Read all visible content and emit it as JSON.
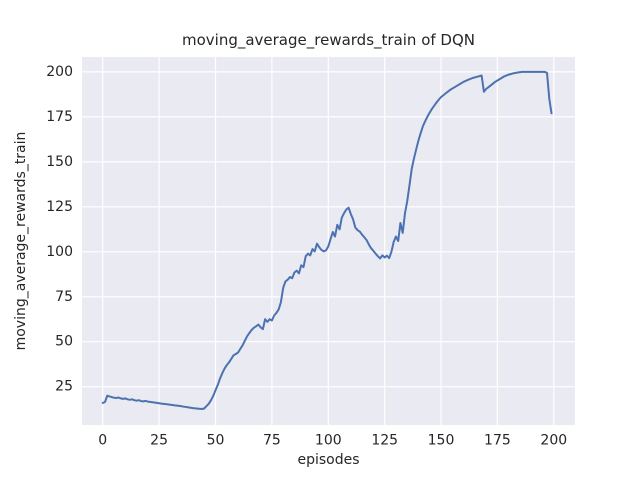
{
  "chart_data": {
    "type": "line",
    "title": "moving_average_rewards_train of DQN",
    "xlabel": "episodes",
    "ylabel": "moving_average_rewards_train",
    "x_ticks": [
      0,
      25,
      50,
      75,
      100,
      125,
      150,
      175,
      200
    ],
    "y_ticks": [
      25,
      50,
      75,
      100,
      125,
      150,
      175,
      200
    ],
    "xlim": [
      -9.2,
      209.4
    ],
    "ylim": [
      3.7,
      208.3
    ],
    "grid": true,
    "legend_position": "none",
    "colors": {
      "figure_bg": "#ffffff",
      "plot_bg": "#eaeaf2",
      "grid": "#ffffff",
      "text": "#262626",
      "line": "#4c72b0"
    },
    "series": [
      {
        "name": "DQN",
        "color": "#4c72b0",
        "points": [
          [
            0,
            16
          ],
          [
            1,
            16.5
          ],
          [
            2,
            20
          ],
          [
            3,
            19.6
          ],
          [
            4,
            19.2
          ],
          [
            5,
            18.9
          ],
          [
            6,
            18.7
          ],
          [
            7,
            19.0
          ],
          [
            8,
            18.5
          ],
          [
            9,
            18.2
          ],
          [
            10,
            18.5
          ],
          [
            11,
            18.0
          ],
          [
            12,
            17.7
          ],
          [
            13,
            18.0
          ],
          [
            14,
            17.5
          ],
          [
            15,
            17.2
          ],
          [
            16,
            17.5
          ],
          [
            17,
            17.0
          ],
          [
            18,
            16.8
          ],
          [
            19,
            17.1
          ],
          [
            20,
            16.7
          ],
          [
            22,
            16.3
          ],
          [
            24,
            16.0
          ],
          [
            26,
            15.6
          ],
          [
            28,
            15.3
          ],
          [
            30,
            15.0
          ],
          [
            32,
            14.6
          ],
          [
            34,
            14.3
          ],
          [
            36,
            13.9
          ],
          [
            38,
            13.5
          ],
          [
            40,
            13.1
          ],
          [
            42,
            12.8
          ],
          [
            44,
            12.6
          ],
          [
            45,
            12.9
          ],
          [
            46,
            14.2
          ],
          [
            47,
            15.5
          ],
          [
            48,
            17.5
          ],
          [
            49,
            20
          ],
          [
            50,
            23
          ],
          [
            51,
            26
          ],
          [
            52,
            29.5
          ],
          [
            53,
            32.5
          ],
          [
            54,
            35
          ],
          [
            55,
            37
          ],
          [
            56,
            38.5
          ],
          [
            57,
            40.5
          ],
          [
            58,
            42.5
          ],
          [
            59,
            43.2
          ],
          [
            60,
            44
          ],
          [
            61,
            46
          ],
          [
            62,
            48
          ],
          [
            63,
            50.5
          ],
          [
            64,
            53
          ],
          [
            65,
            54.8
          ],
          [
            66,
            56.5
          ],
          [
            67,
            57.8
          ],
          [
            68,
            58.6
          ],
          [
            69,
            59.5
          ],
          [
            70,
            58
          ],
          [
            71,
            57
          ],
          [
            72,
            62.5
          ],
          [
            73,
            61
          ],
          [
            74,
            62.5
          ],
          [
            75,
            61.8
          ],
          [
            76,
            64.5
          ],
          [
            77,
            66
          ],
          [
            78,
            68
          ],
          [
            79,
            72
          ],
          [
            80,
            80
          ],
          [
            81,
            83.5
          ],
          [
            82,
            84.5
          ],
          [
            83,
            86
          ],
          [
            84,
            85.3
          ],
          [
            85,
            88.5
          ],
          [
            86,
            89.5
          ],
          [
            87,
            88
          ],
          [
            88,
            92.5
          ],
          [
            89,
            91.5
          ],
          [
            90,
            97.5
          ],
          [
            91,
            99
          ],
          [
            92,
            98
          ],
          [
            93,
            101.5
          ],
          [
            94,
            100.2
          ],
          [
            95,
            104.5
          ],
          [
            96,
            102.5
          ],
          [
            97,
            101
          ],
          [
            98,
            100.2
          ],
          [
            99,
            100.8
          ],
          [
            100,
            103
          ],
          [
            101,
            107
          ],
          [
            102,
            111
          ],
          [
            103,
            108.5
          ],
          [
            104,
            115
          ],
          [
            105,
            112.5
          ],
          [
            106,
            119
          ],
          [
            107,
            121.5
          ],
          [
            108,
            123.5
          ],
          [
            109,
            124.5
          ],
          [
            110,
            121
          ],
          [
            111,
            118
          ],
          [
            112,
            113.5
          ],
          [
            113,
            112
          ],
          [
            114,
            111.2
          ],
          [
            115,
            109.5
          ],
          [
            116,
            108
          ],
          [
            117,
            106.5
          ],
          [
            118,
            104
          ],
          [
            119,
            102
          ],
          [
            120,
            100.5
          ],
          [
            121,
            99
          ],
          [
            122,
            97.5
          ],
          [
            123,
            96.3
          ],
          [
            124,
            98
          ],
          [
            125,
            96.8
          ],
          [
            126,
            97.8
          ],
          [
            127,
            96.5
          ],
          [
            128,
            100
          ],
          [
            129,
            105.5
          ],
          [
            130,
            108.5
          ],
          [
            131,
            106
          ],
          [
            132,
            116
          ],
          [
            133,
            110.5
          ],
          [
            134,
            121.5
          ],
          [
            135,
            128
          ],
          [
            136,
            137
          ],
          [
            137,
            146
          ],
          [
            138,
            152
          ],
          [
            139,
            157
          ],
          [
            140,
            162
          ],
          [
            141,
            166
          ],
          [
            142,
            170
          ],
          [
            143,
            172.8
          ],
          [
            144,
            175.2
          ],
          [
            145,
            177.5
          ],
          [
            146,
            179.5
          ],
          [
            147,
            181.3
          ],
          [
            148,
            183
          ],
          [
            149,
            184.6
          ],
          [
            150,
            186
          ],
          [
            152,
            188
          ],
          [
            154,
            190
          ],
          [
            156,
            191.5
          ],
          [
            158,
            193
          ],
          [
            160,
            194.5
          ],
          [
            162,
            195.6
          ],
          [
            164,
            196.6
          ],
          [
            166,
            197.3
          ],
          [
            168,
            198
          ],
          [
            169,
            189
          ],
          [
            170,
            190.5
          ],
          [
            172,
            192.5
          ],
          [
            174,
            194.5
          ],
          [
            176,
            196
          ],
          [
            178,
            197.5
          ],
          [
            180,
            198.5
          ],
          [
            182,
            199.2
          ],
          [
            184,
            199.7
          ],
          [
            186,
            200
          ],
          [
            188,
            200
          ],
          [
            190,
            200
          ],
          [
            192,
            200
          ],
          [
            194,
            200
          ],
          [
            196,
            200
          ],
          [
            197,
            199.5
          ],
          [
            198,
            185
          ],
          [
            199,
            177
          ]
        ]
      }
    ]
  }
}
